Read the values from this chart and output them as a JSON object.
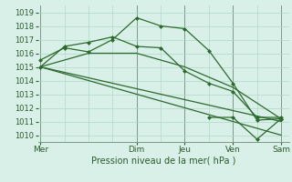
{
  "background_color": "#d8f0e8",
  "grid_color": "#b0d8c8",
  "line_color": "#2d6a2d",
  "marker_color": "#2d6a2d",
  "xlabel": "Pression niveau de la mer( hPa )",
  "ylim": [
    1009.5,
    1019.5
  ],
  "yticks": [
    1010,
    1011,
    1012,
    1013,
    1014,
    1015,
    1016,
    1017,
    1018,
    1019
  ],
  "x_labels": [
    "Mer",
    "",
    "Dim",
    "Jeu",
    "",
    "Ven",
    "",
    "Sam"
  ],
  "x_day_lines": [
    0,
    12,
    18,
    24,
    30
  ],
  "x_day_labels": [
    "Mer",
    "Dim",
    "Jeu",
    "Ven",
    "Sam"
  ],
  "xlim": [
    -0.3,
    31.0
  ],
  "series1": {
    "x": [
      0,
      3,
      6,
      9,
      12,
      15,
      18,
      21,
      24,
      27,
      30
    ],
    "y": [
      1015.5,
      1016.4,
      1016.1,
      1017.0,
      1018.6,
      1018.0,
      1017.8,
      1016.2,
      1013.8,
      1011.1,
      1011.2
    ]
  },
  "series2": {
    "x": [
      0,
      3,
      6,
      9,
      12,
      15,
      18,
      21,
      24,
      27,
      30
    ],
    "y": [
      1015.0,
      1016.5,
      1016.8,
      1017.2,
      1016.5,
      1016.4,
      1014.7,
      1013.8,
      1013.2,
      1011.3,
      1011.3
    ]
  },
  "series3": {
    "x": [
      0,
      6,
      12,
      18,
      24,
      30
    ],
    "y": [
      1015.0,
      1016.0,
      1016.0,
      1015.0,
      1013.5,
      1011.2
    ]
  },
  "series4": {
    "x": [
      0,
      30
    ],
    "y": [
      1015.0,
      1011.0
    ]
  },
  "series5": {
    "x": [
      0,
      30
    ],
    "y": [
      1015.0,
      1010.0
    ]
  },
  "series6": {
    "x": [
      21,
      24,
      27,
      30
    ],
    "y": [
      1011.3,
      1011.3,
      1009.7,
      1011.2
    ]
  }
}
